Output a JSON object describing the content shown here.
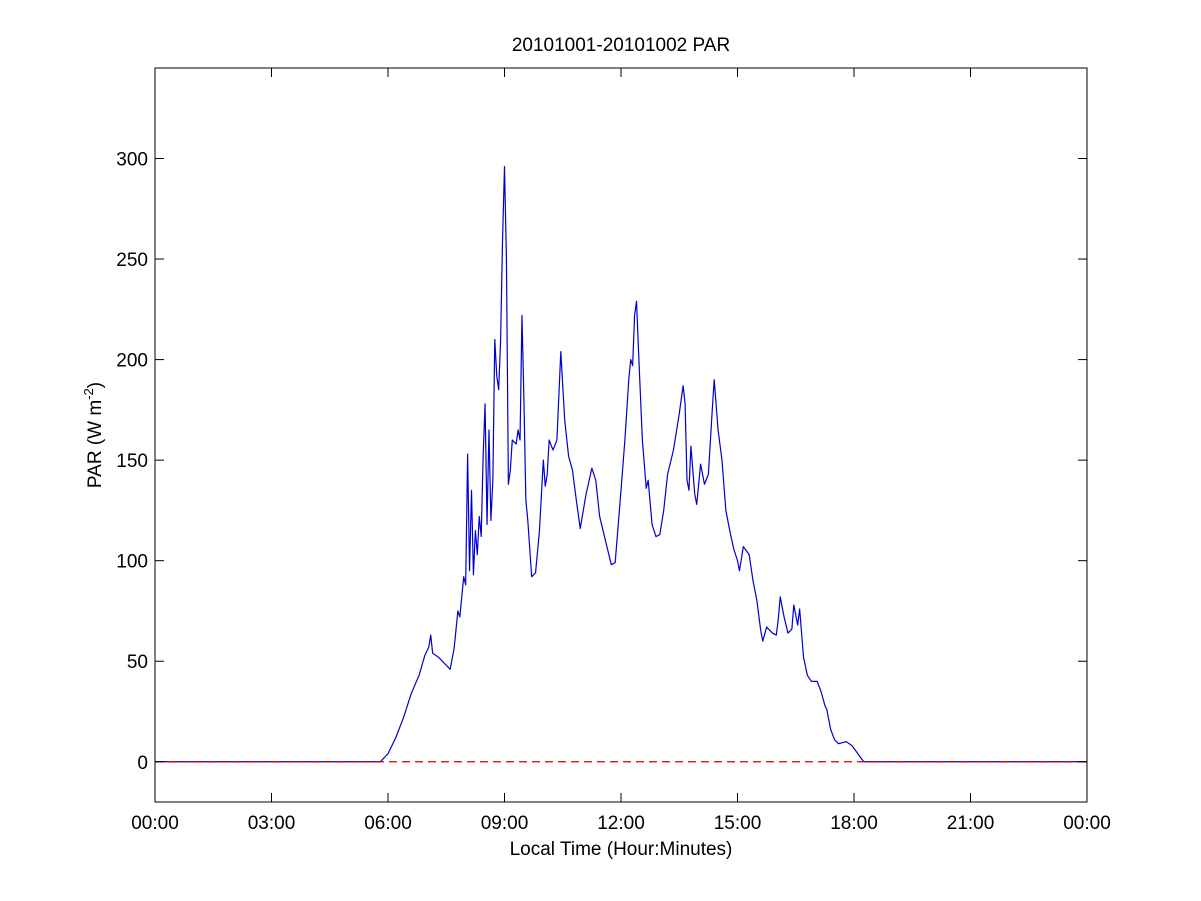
{
  "chart_data": {
    "type": "line",
    "title": "20101001-20101002 PAR",
    "xlabel": "Local Time (Hour:Minutes)",
    "ylabel": {
      "main": "PAR (W m",
      "sup": "-2",
      "tail": ")"
    },
    "x_units": "hours since 00:00 local time",
    "xlim": [
      0,
      24
    ],
    "ylim": [
      -20,
      345
    ],
    "x_ticks": [
      {
        "value": 0,
        "label": "00:00"
      },
      {
        "value": 3,
        "label": "03:00"
      },
      {
        "value": 6,
        "label": "06:00"
      },
      {
        "value": 9,
        "label": "09:00"
      },
      {
        "value": 12,
        "label": "12:00"
      },
      {
        "value": 15,
        "label": "15:00"
      },
      {
        "value": 18,
        "label": "18:00"
      },
      {
        "value": 21,
        "label": "21:00"
      },
      {
        "value": 24,
        "label": "00:00"
      }
    ],
    "y_ticks": [
      {
        "value": 0,
        "label": "0"
      },
      {
        "value": 50,
        "label": "50"
      },
      {
        "value": 100,
        "label": "100"
      },
      {
        "value": 150,
        "label": "150"
      },
      {
        "value": 200,
        "label": "200"
      },
      {
        "value": 250,
        "label": "250"
      },
      {
        "value": 300,
        "label": "300"
      }
    ],
    "grid": false,
    "series": [
      {
        "color": "#0000cc",
        "style": "solid",
        "points": [
          [
            0,
            0
          ],
          [
            5.8,
            0
          ],
          [
            6.0,
            4
          ],
          [
            6.2,
            12
          ],
          [
            6.4,
            22
          ],
          [
            6.6,
            34
          ],
          [
            6.8,
            43
          ],
          [
            6.95,
            53
          ],
          [
            7.05,
            57
          ],
          [
            7.1,
            63
          ],
          [
            7.15,
            54
          ],
          [
            7.3,
            52
          ],
          [
            7.5,
            48
          ],
          [
            7.6,
            46
          ],
          [
            7.7,
            56
          ],
          [
            7.8,
            75
          ],
          [
            7.85,
            72
          ],
          [
            7.95,
            92
          ],
          [
            8.0,
            88
          ],
          [
            8.05,
            153
          ],
          [
            8.1,
            95
          ],
          [
            8.15,
            135
          ],
          [
            8.2,
            93
          ],
          [
            8.25,
            115
          ],
          [
            8.3,
            103
          ],
          [
            8.35,
            122
          ],
          [
            8.4,
            112
          ],
          [
            8.45,
            152
          ],
          [
            8.5,
            178
          ],
          [
            8.55,
            118
          ],
          [
            8.6,
            165
          ],
          [
            8.65,
            120
          ],
          [
            8.7,
            140
          ],
          [
            8.75,
            210
          ],
          [
            8.8,
            192
          ],
          [
            8.85,
            185
          ],
          [
            8.9,
            210
          ],
          [
            8.95,
            260
          ],
          [
            9.0,
            296
          ],
          [
            9.05,
            250
          ],
          [
            9.1,
            138
          ],
          [
            9.15,
            145
          ],
          [
            9.2,
            160
          ],
          [
            9.3,
            158
          ],
          [
            9.35,
            165
          ],
          [
            9.4,
            160
          ],
          [
            9.45,
            222
          ],
          [
            9.5,
            180
          ],
          [
            9.55,
            130
          ],
          [
            9.6,
            120
          ],
          [
            9.7,
            92
          ],
          [
            9.8,
            94
          ],
          [
            9.9,
            115
          ],
          [
            10.0,
            150
          ],
          [
            10.05,
            137
          ],
          [
            10.1,
            143
          ],
          [
            10.15,
            160
          ],
          [
            10.25,
            155
          ],
          [
            10.35,
            160
          ],
          [
            10.45,
            204
          ],
          [
            10.55,
            170
          ],
          [
            10.65,
            152
          ],
          [
            10.75,
            145
          ],
          [
            10.85,
            130
          ],
          [
            10.95,
            116
          ],
          [
            11.1,
            133
          ],
          [
            11.25,
            146
          ],
          [
            11.35,
            140
          ],
          [
            11.45,
            122
          ],
          [
            11.6,
            110
          ],
          [
            11.75,
            98
          ],
          [
            11.85,
            99
          ],
          [
            12.0,
            135
          ],
          [
            12.1,
            160
          ],
          [
            12.2,
            190
          ],
          [
            12.25,
            200
          ],
          [
            12.3,
            197
          ],
          [
            12.35,
            222
          ],
          [
            12.4,
            229
          ],
          [
            12.45,
            205
          ],
          [
            12.55,
            160
          ],
          [
            12.65,
            136
          ],
          [
            12.7,
            140
          ],
          [
            12.8,
            118
          ],
          [
            12.9,
            112
          ],
          [
            13.0,
            113
          ],
          [
            13.1,
            125
          ],
          [
            13.2,
            143
          ],
          [
            13.35,
            155
          ],
          [
            13.5,
            173
          ],
          [
            13.6,
            187
          ],
          [
            13.65,
            178
          ],
          [
            13.7,
            140
          ],
          [
            13.75,
            135
          ],
          [
            13.8,
            157
          ],
          [
            13.9,
            133
          ],
          [
            13.95,
            128
          ],
          [
            14.05,
            148
          ],
          [
            14.15,
            138
          ],
          [
            14.25,
            143
          ],
          [
            14.35,
            175
          ],
          [
            14.4,
            190
          ],
          [
            14.5,
            165
          ],
          [
            14.6,
            150
          ],
          [
            14.7,
            125
          ],
          [
            14.8,
            115
          ],
          [
            14.9,
            106
          ],
          [
            15.0,
            100
          ],
          [
            15.05,
            95
          ],
          [
            15.15,
            107
          ],
          [
            15.3,
            103
          ],
          [
            15.4,
            90
          ],
          [
            15.5,
            80
          ],
          [
            15.6,
            65
          ],
          [
            15.65,
            60
          ],
          [
            15.75,
            67
          ],
          [
            15.9,
            64
          ],
          [
            16.0,
            63
          ],
          [
            16.05,
            71
          ],
          [
            16.1,
            82
          ],
          [
            16.2,
            72
          ],
          [
            16.3,
            64
          ],
          [
            16.4,
            66
          ],
          [
            16.45,
            78
          ],
          [
            16.55,
            68
          ],
          [
            16.6,
            76
          ],
          [
            16.7,
            52
          ],
          [
            16.8,
            43
          ],
          [
            16.9,
            40
          ],
          [
            17.05,
            40
          ],
          [
            17.15,
            35
          ],
          [
            17.25,
            28
          ],
          [
            17.3,
            26
          ],
          [
            17.4,
            16
          ],
          [
            17.5,
            11
          ],
          [
            17.6,
            9
          ],
          [
            17.8,
            10
          ],
          [
            17.95,
            8
          ],
          [
            18.1,
            4
          ],
          [
            18.25,
            0
          ],
          [
            24,
            0
          ]
        ]
      },
      {
        "color": "#cc0000",
        "style": "dashed",
        "points": [
          [
            0,
            0
          ],
          [
            24,
            0
          ]
        ]
      }
    ]
  }
}
